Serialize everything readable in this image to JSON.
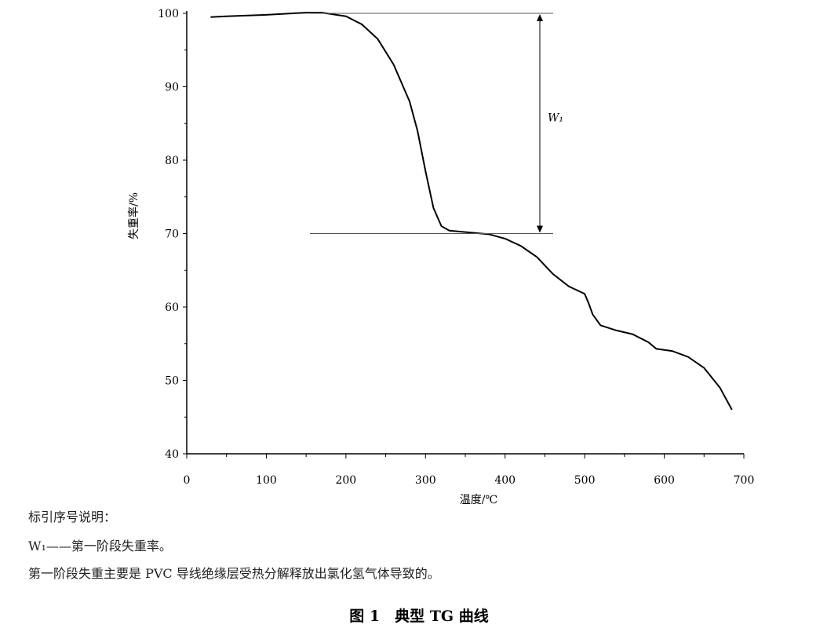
{
  "chart_data": {
    "type": "line",
    "x_label": "温度/℃",
    "y_label": "失重率/%",
    "x": [
      30,
      50,
      100,
      150,
      170,
      200,
      220,
      240,
      260,
      280,
      290,
      300,
      310,
      320,
      330,
      350,
      380,
      400,
      420,
      440,
      460,
      480,
      500,
      505,
      510,
      520,
      540,
      560,
      580,
      590,
      610,
      630,
      650,
      670,
      685
    ],
    "values": [
      99.5,
      99.6,
      99.8,
      100.1,
      100.1,
      99.6,
      98.5,
      96.5,
      93,
      88,
      84,
      78.5,
      73.5,
      71,
      70.4,
      70.2,
      69.9,
      69.3,
      68.3,
      66.8,
      64.5,
      62.8,
      61.8,
      60.5,
      59,
      57.5,
      56.8,
      56.3,
      55.2,
      54.3,
      54,
      53.2,
      51.7,
      49,
      46
    ],
    "color": "#000000",
    "xlim": [
      0,
      700
    ],
    "ylim": [
      40,
      100
    ],
    "xticks": [
      0,
      100,
      200,
      300,
      400,
      500,
      600,
      700
    ],
    "yticks": [
      40,
      50,
      60,
      70,
      80,
      90,
      100
    ],
    "reference_lines": [
      100,
      70
    ],
    "annotation": "W₁"
  },
  "notes": {
    "heading": "标引序号说明：",
    "item": "W₁——第一阶段失重率。",
    "text": "第一阶段失重主要是 PVC 导线绝缘层受热分解释放出氯化氢气体导致的。"
  },
  "caption": "图 1　典型 TG 曲线"
}
